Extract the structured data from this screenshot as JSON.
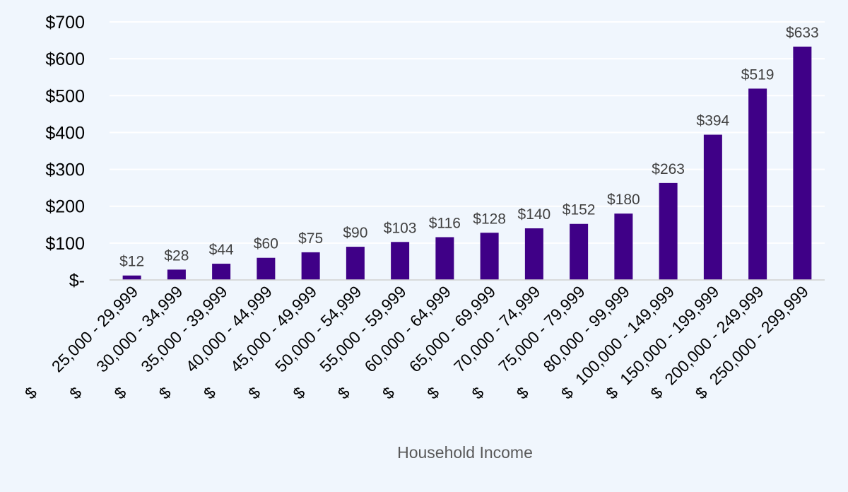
{
  "chart_data": {
    "type": "bar",
    "title": "",
    "xlabel": "Household Income",
    "ylabel": "",
    "ylim": [
      0,
      700
    ],
    "yticks": [
      {
        "value": 0,
        "label": "$-"
      },
      {
        "value": 100,
        "label": "$100"
      },
      {
        "value": 200,
        "label": "$200"
      },
      {
        "value": 300,
        "label": "$300"
      },
      {
        "value": 400,
        "label": "$400"
      },
      {
        "value": 500,
        "label": "$500"
      },
      {
        "value": 600,
        "label": "$600"
      },
      {
        "value": 700,
        "label": "$700"
      }
    ],
    "currency_symbol": "$",
    "categories": [
      "25,000 - 29,999",
      "30,000 - 34,999",
      "35,000 - 39,999",
      "40,000 - 44,999",
      "45,000 - 49,999",
      "50,000 - 54,999",
      "55,000 - 59,999",
      "60,000 - 64,999",
      "65,000 - 69,999",
      "70,000 - 74,999",
      "75,000 - 79,999",
      "80,000 - 99,999",
      "100,000 - 149,999",
      "150,000 - 199,999",
      "200,000 - 249,999",
      "250,000 - 299,999"
    ],
    "values": [
      12,
      28,
      44,
      60,
      75,
      90,
      103,
      116,
      128,
      140,
      152,
      180,
      263,
      394,
      519,
      633
    ],
    "data_labels": [
      "$12",
      "$28",
      "$44",
      "$60",
      "$75",
      "$90",
      "$103",
      "$116",
      "$128",
      "$140",
      "$152",
      "$180",
      "$263",
      "$394",
      "$519",
      "$633"
    ],
    "grid": true,
    "legend": "none",
    "bar_color": "#3f0087",
    "background_color": "#f0f6fd"
  }
}
